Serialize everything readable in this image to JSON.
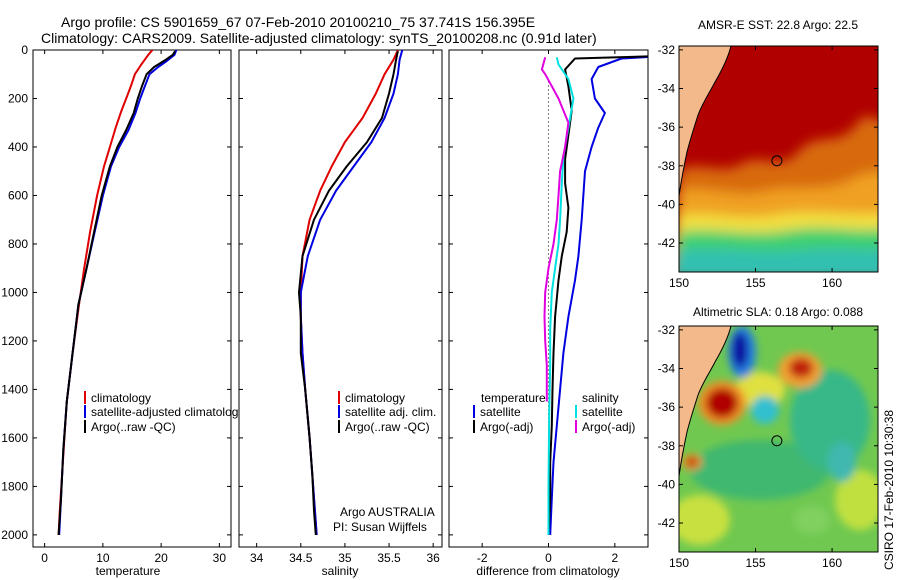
{
  "title": {
    "line1": "Argo profile: CS 5901659_67 07-Feb-2010 20100210_75 37.741S 156.395E",
    "line2": "Climatology: CARS2009. Satellite-adjusted climatology: synTS_20100208.nc (0.91d later)"
  },
  "credit": {
    "owner": "Argo AUSTRALIA",
    "pi": "PI: Susan Wijffels",
    "stamp": "CSIRO 17-Feb-2010 10:30:38"
  },
  "colors": {
    "climatology": "#e00000",
    "satellite": "#0000e0",
    "argo": "#000000",
    "temp_satellite": "#00e0e0",
    "salinity_adj": "#e000e0",
    "land": "#f4b98a"
  },
  "chart_data": [
    {
      "type": "line",
      "id": "temperature",
      "xlabel": "temperature",
      "ylabel": "",
      "xlim": [
        -2,
        32
      ],
      "ylim": [
        2050,
        0
      ],
      "xticks": [
        "0",
        "10",
        "20",
        "30"
      ],
      "xtick_values": [
        0,
        10,
        20,
        30
      ],
      "yticks": [
        "0",
        "200",
        "400",
        "600",
        "800",
        "1000",
        "1200",
        "1400",
        "1600",
        "1800",
        "2000"
      ],
      "ytick_values": [
        0,
        200,
        400,
        600,
        800,
        1000,
        1200,
        1400,
        1600,
        1800,
        2000
      ],
      "legend": [
        "climatology",
        "satellite-adjusted climatology",
        "Argo(..raw -QC)"
      ],
      "series": [
        {
          "name": "climatology",
          "color": "#e00000",
          "x": [
            18.5,
            17.8,
            16.6,
            15.5,
            14.8,
            14.0,
            13.2,
            12.2,
            11.2,
            10.2,
            9.0,
            7.8,
            6.8,
            5.9,
            4.8,
            3.8,
            3.4,
            3.0,
            2.6,
            2.4
          ],
          "y": [
            0,
            20,
            60,
            100,
            150,
            200,
            250,
            320,
            400,
            480,
            600,
            750,
            900,
            1050,
            1250,
            1450,
            1600,
            1750,
            1900,
            2000
          ]
        },
        {
          "name": "satellite-adjusted climatology",
          "color": "#0000e0",
          "x": [
            22.6,
            22.3,
            21.0,
            19.5,
            18.0,
            17.2,
            16.4,
            15.6,
            14.4,
            12.8,
            11.4,
            10.0,
            8.6,
            7.2,
            5.8,
            4.8,
            3.8,
            3.2,
            2.8,
            2.5
          ],
          "y": [
            0,
            20,
            45,
            70,
            100,
            150,
            200,
            260,
            330,
            400,
            480,
            600,
            750,
            900,
            1050,
            1250,
            1450,
            1650,
            1850,
            2000
          ]
        },
        {
          "name": "Argo(..raw -QC)",
          "color": "#000000",
          "x": [
            22.4,
            22.0,
            20.5,
            18.8,
            17.5,
            16.7,
            16.0,
            15.3,
            14.0,
            12.5,
            11.2,
            9.8,
            8.5,
            7.2,
            5.8,
            4.8,
            3.8,
            3.2,
            2.8,
            2.4
          ],
          "y": [
            5,
            20,
            45,
            70,
            100,
            150,
            200,
            260,
            330,
            400,
            480,
            600,
            750,
            900,
            1050,
            1250,
            1450,
            1650,
            1850,
            2000
          ]
        }
      ]
    },
    {
      "type": "line",
      "id": "salinity",
      "xlabel": "salinity",
      "ylabel": "",
      "xlim": [
        33.8,
        36.1
      ],
      "ylim": [
        2050,
        0
      ],
      "xticks": [
        "34",
        "34.5",
        "35",
        "35.5",
        "36"
      ],
      "xtick_values": [
        34,
        34.5,
        35,
        35.5,
        36
      ],
      "yticks": [],
      "legend": [
        "climatology",
        "satellite adj. clim.",
        "Argo(..raw -QC)"
      ],
      "series": [
        {
          "name": "climatology",
          "color": "#e00000",
          "x": [
            35.6,
            35.55,
            35.45,
            35.35,
            35.2,
            35.0,
            34.85,
            34.72,
            34.6,
            34.52,
            34.5,
            34.5,
            34.52,
            34.55,
            34.6,
            34.63,
            34.66,
            34.68
          ],
          "y": [
            0,
            40,
            100,
            180,
            280,
            380,
            480,
            580,
            700,
            850,
            1000,
            1100,
            1250,
            1400,
            1600,
            1750,
            1900,
            2000
          ]
        },
        {
          "name": "satellite adj. clim.",
          "color": "#0000e0",
          "x": [
            35.65,
            35.62,
            35.6,
            35.55,
            35.45,
            35.3,
            35.1,
            34.9,
            34.72,
            34.58,
            34.5,
            34.5,
            34.52,
            34.55,
            34.6,
            34.63,
            34.66,
            34.68
          ],
          "y": [
            0,
            40,
            100,
            180,
            280,
            380,
            480,
            580,
            700,
            850,
            1000,
            1100,
            1250,
            1400,
            1600,
            1750,
            1900,
            2000
          ]
        },
        {
          "name": "Argo(..raw -QC)",
          "color": "#000000",
          "x": [
            35.6,
            35.58,
            35.55,
            35.5,
            35.42,
            35.25,
            35.02,
            34.82,
            34.65,
            34.52,
            34.48,
            34.5,
            34.5,
            34.55,
            34.6,
            34.63,
            34.65,
            34.67
          ],
          "y": [
            5,
            40,
            100,
            180,
            280,
            380,
            480,
            580,
            700,
            850,
            1000,
            1100,
            1250,
            1400,
            1600,
            1750,
            1900,
            2000
          ]
        }
      ]
    },
    {
      "type": "line",
      "id": "difference",
      "xlabel": "difference from climatology",
      "ylabel": "",
      "xlim": [
        -3,
        3
      ],
      "ylim": [
        2050,
        0
      ],
      "xticks": [
        "-2",
        "0",
        "2"
      ],
      "xtick_values": [
        -2,
        0,
        2
      ],
      "yticks": [],
      "legend_left_header": "temperature",
      "legend_right_header": "salinity",
      "legend_left": [
        "satellite",
        "Argo(-adj)"
      ],
      "legend_right": [
        "satellite",
        "Argo(-adj)"
      ],
      "series": [
        {
          "name": "temperature satellite",
          "color": "#0000e0",
          "x": [
            3.5,
            2.2,
            1.5,
            1.3,
            1.4,
            1.7,
            1.5,
            1.3,
            1.1,
            1.0,
            0.9,
            0.8,
            0.6,
            0.45,
            0.35,
            0.25,
            0.15,
            0.1,
            0.05
          ],
          "y": [
            25,
            35,
            70,
            120,
            200,
            260,
            320,
            400,
            500,
            700,
            850,
            950,
            1100,
            1250,
            1400,
            1550,
            1700,
            1850,
            2000
          ]
        },
        {
          "name": "temperature Argo(-adj)",
          "color": "#000000",
          "x": [
            3.3,
            0.8,
            0.5,
            0.6,
            0.7,
            0.6,
            0.5,
            0.5,
            0.6,
            0.55,
            0.4,
            0.3,
            0.2,
            0.15,
            0.12,
            0.1,
            0.05,
            0.05,
            0.0
          ],
          "y": [
            25,
            35,
            80,
            150,
            250,
            350,
            450,
            550,
            650,
            750,
            850,
            950,
            1100,
            1250,
            1400,
            1550,
            1700,
            1850,
            2000
          ]
        },
        {
          "name": "salinity satellite",
          "color": "#00e0e0",
          "x": [
            0.25,
            0.3,
            0.6,
            0.75,
            0.65,
            0.55,
            0.45,
            0.4,
            0.35,
            0.3,
            0.2,
            0.1,
            0.05,
            0.05,
            0.02,
            0.0,
            0.0
          ],
          "y": [
            30,
            60,
            120,
            200,
            280,
            360,
            440,
            550,
            700,
            800,
            900,
            1000,
            1150,
            1300,
            1500,
            1800,
            2000
          ]
        },
        {
          "name": "salinity Argo(-adj)",
          "color": "#e000e0",
          "x": [
            -0.1,
            -0.2,
            -0.1,
            0.3,
            0.6,
            0.5,
            0.35,
            0.3,
            0.25,
            0.15,
            0.0,
            -0.1,
            -0.12,
            -0.1,
            -0.05,
            -0.05
          ],
          "y": [
            30,
            80,
            100,
            200,
            300,
            400,
            500,
            600,
            700,
            800,
            900,
            1000,
            1100,
            1200,
            1300,
            1450
          ]
        }
      ]
    },
    {
      "type": "heatmap",
      "id": "sst-map",
      "title": "AMSR-E SST: 22.8 Argo: 22.5",
      "xlim": [
        150,
        163
      ],
      "ylim": [
        -43.5,
        -31.8
      ],
      "xticks": [
        "150",
        "155",
        "160"
      ],
      "xtick_values": [
        150,
        155,
        160
      ],
      "yticks": [
        "-32",
        "-34",
        "-36",
        "-38",
        "-40",
        "-42"
      ],
      "ytick_values": [
        -32,
        -34,
        -36,
        -38,
        -40,
        -42
      ],
      "marker": {
        "lon": 156.395,
        "lat": -37.741
      }
    },
    {
      "type": "heatmap",
      "id": "sla-map",
      "title": "Altimetric SLA: 0.18 Argo: 0.088",
      "xlim": [
        150,
        163
      ],
      "ylim": [
        -43.5,
        -31.8
      ],
      "xticks": [
        "150",
        "155",
        "160"
      ],
      "xtick_values": [
        150,
        155,
        160
      ],
      "yticks": [
        "-32",
        "-34",
        "-36",
        "-38",
        "-40",
        "-42"
      ],
      "ytick_values": [
        -32,
        -34,
        -36,
        -38,
        -40,
        -42
      ],
      "marker": {
        "lon": 156.395,
        "lat": -37.741
      }
    }
  ]
}
